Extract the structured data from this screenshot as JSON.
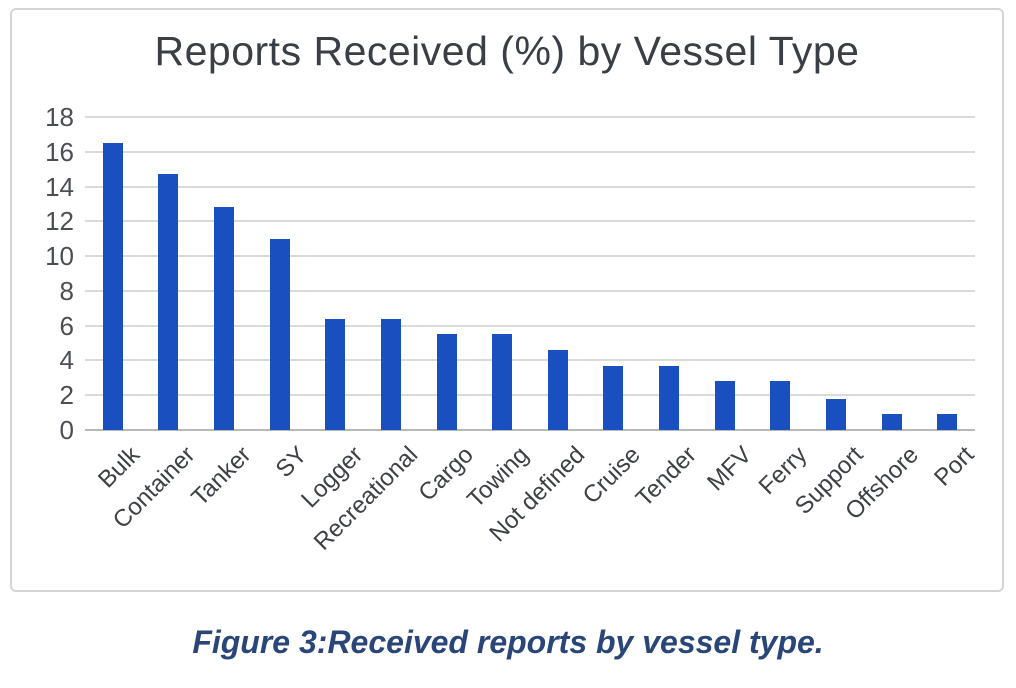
{
  "figure": {
    "caption": "Figure 3:Received reports by vessel type."
  },
  "chart_data": {
    "type": "bar",
    "title": "Reports Received (%) by Vessel Type",
    "categories": [
      "Bulk",
      "Container",
      "Tanker",
      "SY",
      "Logger",
      "Recreational",
      "Cargo",
      "Towing",
      "Not defined",
      "Cruise",
      "Tender",
      "MFV",
      "Ferry",
      "Support",
      "Offshore",
      "Port"
    ],
    "values": [
      16.5,
      14.7,
      12.8,
      11.0,
      6.4,
      6.4,
      5.5,
      5.5,
      4.6,
      3.7,
      3.7,
      2.8,
      2.8,
      1.8,
      0.9,
      0.9
    ],
    "xlabel": "",
    "ylabel": "",
    "ylim": [
      0,
      18
    ],
    "yticks": [
      0,
      2,
      4,
      6,
      8,
      10,
      12,
      14,
      16,
      18
    ],
    "grid": true,
    "legend": null,
    "bar_color": "#1A4FBF",
    "gridline_color": "#dadada",
    "baseline_color": "#b9b9b9",
    "tick_label_color": "#4b4e53",
    "title_color": "#3a3e45",
    "caption_color": "#2a4679"
  }
}
